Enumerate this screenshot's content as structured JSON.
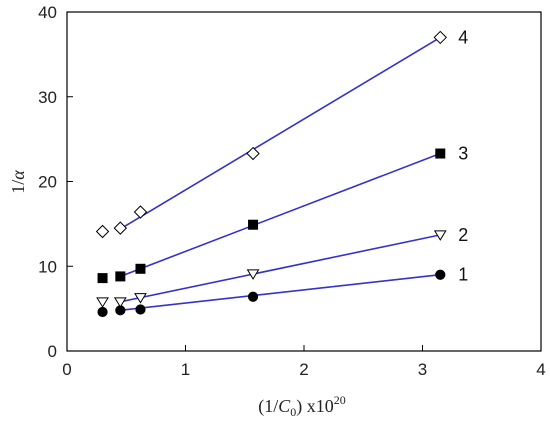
{
  "chart_data": {
    "type": "scatter",
    "title": "",
    "xlabel": "(1/C0) x10^20",
    "ylabel": "1/α",
    "xlim": [
      0,
      4
    ],
    "ylim": [
      0,
      40
    ],
    "xticks": [
      "0",
      "1",
      "2",
      "3",
      "4"
    ],
    "yticks": [
      "0",
      "10",
      "20",
      "30",
      "40"
    ],
    "grid": false,
    "legend": "none",
    "line_color": "#3333cc",
    "series": [
      {
        "name": "1",
        "marker": "filled-circle",
        "x": [
          0.3,
          0.45,
          0.62,
          1.57,
          3.15
        ],
        "y": [
          4.6,
          4.8,
          4.9,
          6.4,
          9.0
        ],
        "fit": {
          "x": [
            0.45,
            3.15
          ],
          "y": [
            4.8,
            9.0
          ]
        }
      },
      {
        "name": "2",
        "marker": "open-triangle-down",
        "x": [
          0.3,
          0.45,
          0.62,
          1.57,
          3.15
        ],
        "y": [
          5.8,
          5.8,
          6.3,
          9.1,
          13.7
        ],
        "fit": {
          "x": [
            0.45,
            3.15
          ],
          "y": [
            5.8,
            13.7
          ]
        }
      },
      {
        "name": "3",
        "marker": "filled-square",
        "x": [
          0.3,
          0.45,
          0.62,
          1.57,
          3.15
        ],
        "y": [
          8.6,
          8.8,
          9.7,
          14.9,
          23.3
        ],
        "fit": {
          "x": [
            0.45,
            3.15
          ],
          "y": [
            8.8,
            23.3
          ]
        }
      },
      {
        "name": "4",
        "marker": "open-diamond",
        "x": [
          0.3,
          0.45,
          0.62,
          1.57,
          3.15
        ],
        "y": [
          14.1,
          14.5,
          16.4,
          23.3,
          37.0
        ],
        "fit": {
          "x": [
            0.45,
            3.15
          ],
          "y": [
            14.4,
            37.0
          ]
        }
      }
    ]
  }
}
